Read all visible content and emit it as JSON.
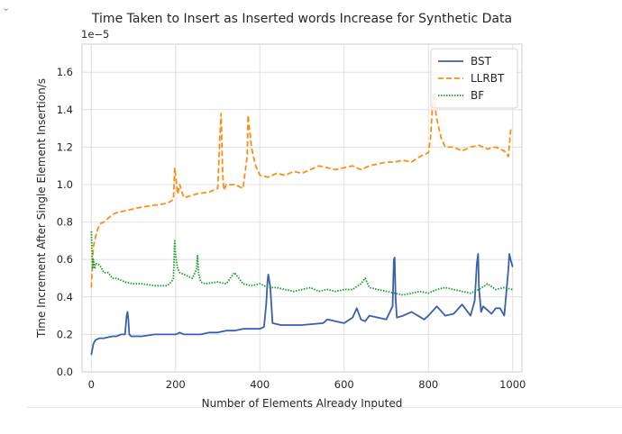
{
  "ui": {
    "collapse_icon": "chevron-down-icon"
  },
  "chart_data": {
    "type": "line",
    "title": "Time Taken to Insert as Inserted words Increase for Synthetic Data",
    "xlabel": "Number of Elements Already Inputed",
    "ylabel": "Time Increment After Single Element Insertion/s",
    "y_offset_label": "1e−5",
    "xlim": [
      -22,
      1022
    ],
    "ylim": [
      0.0,
      1.75
    ],
    "x_ticks": [
      0,
      200,
      400,
      600,
      800,
      1000
    ],
    "y_ticks": [
      0.0,
      0.2,
      0.4,
      0.6,
      0.8,
      1.0,
      1.2,
      1.4,
      1.6
    ],
    "x_tick_labels": [
      "0",
      "200",
      "400",
      "600",
      "800",
      "1000"
    ],
    "y_tick_labels": [
      "0.0",
      "0.2",
      "0.4",
      "0.6",
      "0.8",
      "1.0",
      "1.2",
      "1.4",
      "1.6"
    ],
    "grid": true,
    "legend_position": "top-right",
    "series": [
      {
        "name": "BST",
        "color": "#3a5fad",
        "style": "solid",
        "x": [
          0,
          5,
          10,
          20,
          30,
          40,
          50,
          60,
          70,
          80,
          84,
          86,
          88,
          90,
          95,
          100,
          120,
          150,
          180,
          200,
          210,
          220,
          240,
          260,
          280,
          300,
          320,
          340,
          360,
          380,
          400,
          410,
          415,
          418,
          420,
          425,
          430,
          450,
          500,
          550,
          560,
          600,
          620,
          630,
          640,
          650,
          660,
          700,
          715,
          718,
          720,
          722,
          725,
          740,
          760,
          790,
          800,
          820,
          840,
          860,
          880,
          900,
          910,
          915,
          918,
          920,
          925,
          930,
          940,
          950,
          960,
          970,
          980,
          990,
          992,
          995,
          1000
        ],
        "y": [
          0.09,
          0.15,
          0.17,
          0.18,
          0.18,
          0.185,
          0.19,
          0.19,
          0.2,
          0.2,
          0.3,
          0.32,
          0.28,
          0.2,
          0.19,
          0.19,
          0.19,
          0.2,
          0.2,
          0.2,
          0.21,
          0.2,
          0.2,
          0.2,
          0.21,
          0.21,
          0.22,
          0.22,
          0.23,
          0.23,
          0.23,
          0.24,
          0.36,
          0.48,
          0.52,
          0.45,
          0.26,
          0.25,
          0.25,
          0.26,
          0.28,
          0.26,
          0.29,
          0.34,
          0.28,
          0.27,
          0.3,
          0.28,
          0.35,
          0.6,
          0.61,
          0.4,
          0.29,
          0.3,
          0.32,
          0.28,
          0.3,
          0.35,
          0.3,
          0.31,
          0.36,
          0.3,
          0.38,
          0.58,
          0.63,
          0.45,
          0.32,
          0.35,
          0.33,
          0.31,
          0.34,
          0.34,
          0.3,
          0.55,
          0.63,
          0.6,
          0.56
        ]
      },
      {
        "name": "LLRBT",
        "color": "#ff8c12",
        "style": "dashed",
        "x": [
          0,
          5,
          10,
          15,
          20,
          30,
          40,
          50,
          60,
          80,
          100,
          120,
          150,
          180,
          195,
          198,
          200,
          205,
          210,
          215,
          220,
          250,
          280,
          300,
          305,
          308,
          310,
          312,
          315,
          320,
          340,
          360,
          370,
          372,
          375,
          378,
          380,
          385,
          390,
          400,
          420,
          440,
          460,
          480,
          500,
          520,
          540,
          560,
          580,
          600,
          620,
          640,
          660,
          680,
          700,
          720,
          740,
          760,
          780,
          800,
          805,
          810,
          812,
          815,
          818,
          820,
          825,
          830,
          840,
          860,
          880,
          900,
          920,
          940,
          960,
          980,
          990,
          995,
          1000
        ],
        "y": [
          0.45,
          0.67,
          0.72,
          0.76,
          0.79,
          0.8,
          0.82,
          0.84,
          0.85,
          0.86,
          0.87,
          0.88,
          0.89,
          0.9,
          0.92,
          1.09,
          1.05,
          0.95,
          1.0,
          0.96,
          0.93,
          0.95,
          0.96,
          0.98,
          1.25,
          1.38,
          1.2,
          1.05,
          0.97,
          1.0,
          1.0,
          0.98,
          1.15,
          1.37,
          1.3,
          1.25,
          1.2,
          1.15,
          1.1,
          1.05,
          1.04,
          1.06,
          1.05,
          1.07,
          1.06,
          1.08,
          1.1,
          1.09,
          1.08,
          1.09,
          1.1,
          1.08,
          1.1,
          1.11,
          1.12,
          1.12,
          1.13,
          1.12,
          1.15,
          1.17,
          1.25,
          1.43,
          1.49,
          1.45,
          1.38,
          1.35,
          1.3,
          1.25,
          1.2,
          1.2,
          1.18,
          1.2,
          1.21,
          1.19,
          1.2,
          1.18,
          1.15,
          1.29,
          1.29
        ]
      },
      {
        "name": "BF",
        "color": "#109e27",
        "style": "dotted",
        "x": [
          0,
          3,
          5,
          8,
          10,
          20,
          30,
          40,
          50,
          60,
          80,
          100,
          120,
          150,
          180,
          190,
          195,
          198,
          200,
          205,
          210,
          220,
          240,
          250,
          252,
          255,
          260,
          270,
          300,
          320,
          330,
          340,
          360,
          380,
          400,
          420,
          440,
          460,
          480,
          500,
          520,
          540,
          560,
          580,
          600,
          620,
          640,
          650,
          660,
          680,
          700,
          720,
          740,
          760,
          780,
          800,
          820,
          840,
          860,
          880,
          900,
          920,
          940,
          960,
          980,
          1000
        ],
        "y": [
          0.75,
          0.55,
          0.6,
          0.55,
          0.58,
          0.57,
          0.53,
          0.53,
          0.5,
          0.5,
          0.48,
          0.47,
          0.47,
          0.46,
          0.46,
          0.48,
          0.5,
          0.7,
          0.62,
          0.55,
          0.53,
          0.52,
          0.5,
          0.55,
          0.62,
          0.52,
          0.48,
          0.47,
          0.48,
          0.47,
          0.5,
          0.53,
          0.47,
          0.46,
          0.47,
          0.45,
          0.45,
          0.44,
          0.43,
          0.44,
          0.45,
          0.43,
          0.44,
          0.43,
          0.44,
          0.44,
          0.47,
          0.5,
          0.45,
          0.44,
          0.43,
          0.42,
          0.41,
          0.42,
          0.43,
          0.42,
          0.44,
          0.45,
          0.44,
          0.43,
          0.42,
          0.44,
          0.47,
          0.44,
          0.45,
          0.44
        ]
      }
    ]
  }
}
